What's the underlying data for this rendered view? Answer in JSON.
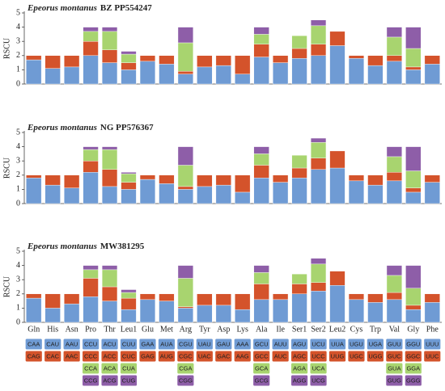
{
  "chart_data": [
    {
      "type": "bar",
      "stacked": true,
      "title": {
        "species": "Epeorus montanus",
        "id": "BZ PP554247"
      },
      "ylabel": "RSCU",
      "categories": [
        "Gln",
        "His",
        "Asn",
        "Pro",
        "Thr",
        "Leu1",
        "Glu",
        "Met",
        "Arg",
        "Tyr",
        "Asp",
        "Lys",
        "Ala",
        "Ile",
        "Ser1",
        "Ser2",
        "Leu2",
        "Cys",
        "Trp",
        "Val",
        "Gly",
        "Phe"
      ],
      "ylim": [
        0,
        5
      ],
      "yticks": [
        0,
        1,
        2,
        3,
        4,
        5
      ],
      "series": [
        {
          "color": "#6f9bd4",
          "values": [
            1.7,
            1.1,
            1.2,
            2.0,
            1.5,
            1.0,
            1.6,
            1.4,
            0.7,
            1.2,
            1.3,
            0.7,
            1.9,
            1.5,
            1.8,
            2.0,
            2.7,
            1.8,
            1.3,
            1.6,
            1.0,
            1.4
          ]
        },
        {
          "color": "#d4532b",
          "values": [
            0.3,
            0.9,
            0.8,
            1.0,
            0.9,
            0.5,
            0.4,
            0.6,
            0.2,
            0.8,
            0.7,
            1.3,
            0.9,
            0.5,
            0.7,
            0.8,
            1.0,
            0.2,
            0.7,
            0.4,
            0.2,
            0.6
          ]
        },
        {
          "color": "#a8d46f",
          "values": [
            null,
            null,
            null,
            0.7,
            1.3,
            0.6,
            null,
            null,
            2.0,
            null,
            null,
            null,
            0.7,
            null,
            0.9,
            1.3,
            null,
            null,
            null,
            1.3,
            1.3,
            null
          ]
        },
        {
          "color": "#8e5ea8",
          "values": [
            null,
            null,
            null,
            0.3,
            0.3,
            0.2,
            null,
            null,
            1.1,
            null,
            null,
            null,
            0.5,
            null,
            0,
            0.4,
            null,
            null,
            null,
            0.7,
            1.5,
            null
          ]
        }
      ]
    },
    {
      "type": "bar",
      "stacked": true,
      "title": {
        "species": "Epeorus montanus",
        "id": "NG PP576367"
      },
      "ylabel": "RSCU",
      "categories": [
        "Gln",
        "His",
        "Asn",
        "Pro",
        "Thr",
        "Leu1",
        "Glu",
        "Met",
        "Arg",
        "Tyr",
        "Asp",
        "Lys",
        "Ala",
        "Ile",
        "Ser1",
        "Ser2",
        "Leu2",
        "Cys",
        "Trp",
        "Val",
        "Gly",
        "Phe"
      ],
      "ylim": [
        0,
        5
      ],
      "yticks": [
        0,
        1,
        2,
        3,
        4,
        5
      ],
      "series": [
        {
          "color": "#6f9bd4",
          "values": [
            1.8,
            1.3,
            1.1,
            2.2,
            1.2,
            1.0,
            1.7,
            1.4,
            1.0,
            1.2,
            1.3,
            0.8,
            1.8,
            1.5,
            1.8,
            2.4,
            2.5,
            1.6,
            1.3,
            1.6,
            0.8,
            1.5
          ]
        },
        {
          "color": "#d4532b",
          "values": [
            0.2,
            0.7,
            0.9,
            0.8,
            1.2,
            0.5,
            0.3,
            0.6,
            0.2,
            0.8,
            0.7,
            1.2,
            0.9,
            0.5,
            0.7,
            0.8,
            1.2,
            0.4,
            0.7,
            0.6,
            0.3,
            0.5
          ]
        },
        {
          "color": "#a8d46f",
          "values": [
            null,
            null,
            null,
            0.8,
            1.4,
            0.6,
            null,
            null,
            1.5,
            null,
            null,
            null,
            0.8,
            null,
            0.9,
            1.1,
            null,
            null,
            null,
            1.1,
            1.2,
            null
          ]
        },
        {
          "color": "#8e5ea8",
          "values": [
            null,
            null,
            null,
            0.2,
            0.2,
            0.1,
            null,
            null,
            1.3,
            null,
            null,
            null,
            0.5,
            null,
            0,
            0.3,
            null,
            null,
            null,
            0.7,
            1.7,
            null
          ]
        }
      ]
    },
    {
      "type": "bar",
      "stacked": true,
      "title": {
        "species": "Epeorus montanus",
        "id": "MW381295"
      },
      "ylabel": "RSCU",
      "categories": [
        "Gln",
        "His",
        "Asn",
        "Pro",
        "Thr",
        "Leu1",
        "Glu",
        "Met",
        "Arg",
        "Tyr",
        "Asp",
        "Lys",
        "Ala",
        "Ile",
        "Ser1",
        "Ser2",
        "Leu2",
        "Cys",
        "Trp",
        "Val",
        "Gly",
        "Phe"
      ],
      "ylim": [
        0,
        5
      ],
      "yticks": [
        0,
        1,
        2,
        3,
        4,
        5
      ],
      "series": [
        {
          "color": "#6f9bd4",
          "values": [
            1.7,
            1.0,
            1.3,
            1.8,
            1.5,
            0.9,
            1.6,
            1.5,
            1.0,
            1.2,
            1.2,
            0.9,
            1.6,
            1.6,
            2.0,
            2.2,
            2.6,
            1.6,
            1.4,
            1.6,
            0.9,
            1.4
          ]
        },
        {
          "color": "#d4532b",
          "values": [
            0.3,
            1.0,
            0.7,
            1.3,
            1.0,
            0.8,
            0.4,
            0.5,
            0.1,
            0.8,
            0.8,
            1.1,
            1.1,
            0.4,
            0.7,
            0.6,
            1.0,
            0.4,
            0.6,
            0.5,
            0.3,
            0.6
          ]
        },
        {
          "color": "#a8d46f",
          "values": [
            null,
            null,
            null,
            0.6,
            1.2,
            0.4,
            null,
            null,
            2.0,
            null,
            null,
            null,
            0.8,
            null,
            0.7,
            1.3,
            null,
            null,
            null,
            1.2,
            1.2,
            null
          ]
        },
        {
          "color": "#8e5ea8",
          "values": [
            null,
            null,
            null,
            0.3,
            0.3,
            0.2,
            null,
            null,
            0.9,
            null,
            null,
            null,
            0.5,
            null,
            0,
            0.4,
            null,
            null,
            null,
            0.7,
            1.6,
            null
          ]
        }
      ]
    }
  ],
  "codon_table": [
    [
      "CAA",
      "CAG"
    ],
    [
      "CAU",
      "CAC"
    ],
    [
      "AAU",
      "AAC"
    ],
    [
      "CCU",
      "CCC",
      "CCA",
      "CCG"
    ],
    [
      "ACU",
      "ACC",
      "ACA",
      "ACG"
    ],
    [
      "CUU",
      "CUC",
      "CUA",
      "CUG"
    ],
    [
      "GAA",
      "GAG"
    ],
    [
      "AUA",
      "AUG"
    ],
    [
      "CGU",
      "CGC",
      "CGA",
      "CGG"
    ],
    [
      "UAU",
      "UAC"
    ],
    [
      "GAU",
      "GAC"
    ],
    [
      "AAA",
      "AAG"
    ],
    [
      "GCU",
      "GCC",
      "GCA",
      "GCG"
    ],
    [
      "AUU",
      "AUC"
    ],
    [
      "AGU",
      "AGC",
      "AGA",
      "AGG"
    ],
    [
      "UCU",
      "UCC",
      "UCA",
      "UCG"
    ],
    [
      "UUA",
      "UUG"
    ],
    [
      "UGU",
      "UGC"
    ],
    [
      "UGA",
      "UGG"
    ],
    [
      "GUU",
      "GUC",
      "GUA",
      "GUG"
    ],
    [
      "GGU",
      "GGC",
      "GGA",
      "GGG"
    ],
    [
      "UUU",
      "UUC"
    ]
  ]
}
